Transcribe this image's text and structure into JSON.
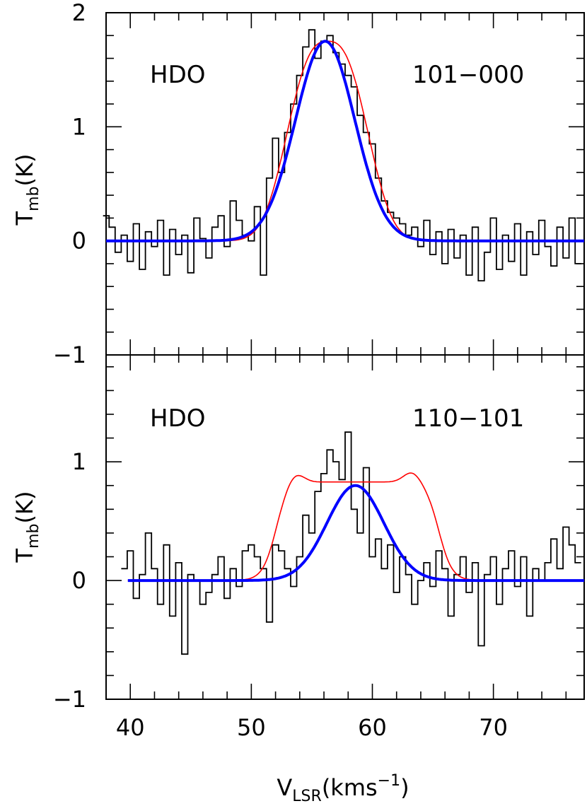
{
  "chart_data": [
    {
      "type": "line",
      "panel": "top",
      "species_label": "HDO",
      "transition_label": "101−000",
      "ylabel_main": "T",
      "ylabel_sub": "mb",
      "ylabel_unit": "(K)",
      "xlim": [
        38,
        77.5
      ],
      "ylim": [
        -1,
        2
      ],
      "yticks": [
        {
          "v": 2,
          "label": "2"
        },
        {
          "v": 1,
          "label": "1"
        },
        {
          "v": 0,
          "label": "0"
        },
        {
          "v": -1,
          "label": "−1"
        }
      ],
      "yminor_step": 0.2,
      "series": [
        {
          "role": "observed",
          "color": "#000000",
          "style": "step",
          "x": [
            38.0,
            38.5,
            39.0,
            39.5,
            40.0,
            40.5,
            41.0,
            41.5,
            42.0,
            42.5,
            43.0,
            43.5,
            44.0,
            44.5,
            45.0,
            45.5,
            46.0,
            46.5,
            47.0,
            47.5,
            48.0,
            48.5,
            49.0,
            49.5,
            50.0,
            50.5,
            51.0,
            51.5,
            52.0,
            52.5,
            53.0,
            53.5,
            54.0,
            54.5,
            55.0,
            55.5,
            56.0,
            56.5,
            57.0,
            57.5,
            58.0,
            58.5,
            59.0,
            59.5,
            60.0,
            60.5,
            61.0,
            61.5,
            62.0,
            62.5,
            63.0,
            63.5,
            64.0,
            64.5,
            65.0,
            65.5,
            66.0,
            66.5,
            67.0,
            67.5,
            68.0,
            68.5,
            69.0,
            69.5,
            70.0,
            70.5,
            71.0,
            71.5,
            72.0,
            72.5,
            73.0,
            73.5,
            74.0,
            74.5,
            75.0,
            75.5,
            76.0,
            76.5,
            77.0
          ],
          "y": [
            0.22,
            0.12,
            -0.1,
            0.05,
            -0.18,
            0.15,
            -0.25,
            0.08,
            -0.05,
            0.18,
            -0.3,
            0.1,
            -0.12,
            0.05,
            -0.28,
            0.2,
            0.02,
            -0.15,
            0.12,
            0.22,
            -0.05,
            0.35,
            0.18,
            0.05,
            0.0,
            0.3,
            -0.3,
            0.55,
            0.9,
            0.6,
            0.95,
            1.2,
            1.45,
            1.7,
            1.85,
            1.6,
            1.75,
            1.8,
            1.65,
            1.55,
            1.45,
            1.35,
            1.1,
            0.95,
            0.85,
            0.55,
            0.35,
            0.25,
            0.2,
            0.15,
            0.05,
            0.12,
            -0.05,
            0.18,
            -0.12,
            0.08,
            -0.2,
            0.1,
            -0.15,
            0.05,
            -0.3,
            0.12,
            -0.35,
            -0.1,
            0.2,
            -0.25,
            0.05,
            -0.18,
            0.15,
            -0.3,
            0.08,
            -0.12,
            0.18,
            -0.05,
            -0.22,
            0.12,
            -0.15,
            0.2,
            -0.2
          ]
        },
        {
          "role": "model-red",
          "color": "#ff0000",
          "style": "gauss-flat",
          "amp": 1.75,
          "center": 56.3,
          "sigma": 3.1,
          "power": 1.35
        },
        {
          "role": "model-blue",
          "color": "#0000ff",
          "style": "gauss",
          "amp": 1.75,
          "center": 56.1,
          "sigma": 2.45
        }
      ]
    },
    {
      "type": "line",
      "panel": "bottom",
      "species_label": "HDO",
      "transition_label": "110−101",
      "ylabel_main": "T",
      "ylabel_sub": "mb",
      "ylabel_unit": "(K)",
      "xlabel_main": "V",
      "xlabel_sub": "LSR",
      "xlabel_unit_pre": "(kms",
      "xlabel_unit_sup": "−1",
      "xlabel_unit_post": ")",
      "xlim": [
        38,
        77.5
      ],
      "ylim": [
        -1,
        1.9
      ],
      "xticks": [
        {
          "v": 40,
          "label": "40"
        },
        {
          "v": 50,
          "label": "50"
        },
        {
          "v": 60,
          "label": "60"
        },
        {
          "v": 70,
          "label": "70"
        }
      ],
      "yticks": [
        {
          "v": 1,
          "label": "1"
        },
        {
          "v": 0,
          "label": "0"
        },
        {
          "v": -1,
          "label": "−1"
        }
      ],
      "yminor_step": 0.2,
      "series": [
        {
          "role": "observed",
          "color": "#000000",
          "style": "step",
          "x": [
            39.5,
            40.0,
            40.5,
            41.0,
            41.5,
            42.0,
            42.5,
            43.0,
            43.5,
            44.0,
            44.5,
            45.0,
            45.5,
            46.0,
            46.5,
            47.0,
            47.5,
            48.0,
            48.5,
            49.0,
            49.5,
            50.0,
            50.5,
            51.0,
            51.5,
            52.0,
            52.5,
            53.0,
            53.5,
            54.0,
            54.5,
            55.0,
            55.5,
            56.0,
            56.5,
            57.0,
            57.5,
            58.0,
            58.5,
            59.0,
            59.5,
            60.0,
            60.5,
            61.0,
            61.5,
            62.0,
            62.5,
            63.0,
            63.5,
            64.0,
            64.5,
            65.0,
            65.5,
            66.0,
            66.5,
            67.0,
            67.5,
            68.0,
            68.5,
            69.0,
            69.5,
            70.0,
            70.5,
            71.0,
            71.5,
            72.0,
            72.5,
            73.0,
            73.5,
            74.0,
            74.5,
            75.0,
            75.5,
            76.0,
            76.5,
            77.0
          ],
          "y": [
            0.1,
            0.25,
            -0.15,
            0.05,
            0.4,
            0.1,
            -0.2,
            0.3,
            -0.3,
            0.15,
            -0.62,
            0.05,
            0.0,
            -0.2,
            -0.1,
            0.05,
            0.2,
            -0.15,
            0.1,
            -0.05,
            0.25,
            0.3,
            0.2,
            0.1,
            -0.35,
            0.3,
            0.25,
            0.1,
            -0.05,
            0.2,
            0.55,
            0.4,
            0.75,
            0.9,
            1.1,
            1.0,
            0.85,
            1.25,
            0.6,
            0.4,
            0.95,
            0.2,
            0.35,
            0.1,
            0.3,
            -0.1,
            0.2,
            0.05,
            -0.2,
            0.0,
            0.15,
            -0.05,
            0.25,
            0.1,
            -0.3,
            0.05,
            0.2,
            -0.1,
            0.15,
            -0.55,
            0.05,
            0.2,
            -0.2,
            0.1,
            0.25,
            -0.05,
            0.2,
            -0.3,
            0.1,
            0.0,
            0.15,
            0.35,
            0.1,
            0.45,
            0.3,
            0.15
          ]
        },
        {
          "role": "model-red",
          "color": "#ff0000",
          "style": "double-horn",
          "lo": 52.0,
          "hi": 65.5,
          "plateau": 0.83,
          "horn": 0.92
        },
        {
          "role": "model-blue",
          "color": "#0000ff",
          "style": "gauss",
          "amp": 0.8,
          "center": 58.6,
          "sigma": 2.35
        }
      ]
    }
  ]
}
